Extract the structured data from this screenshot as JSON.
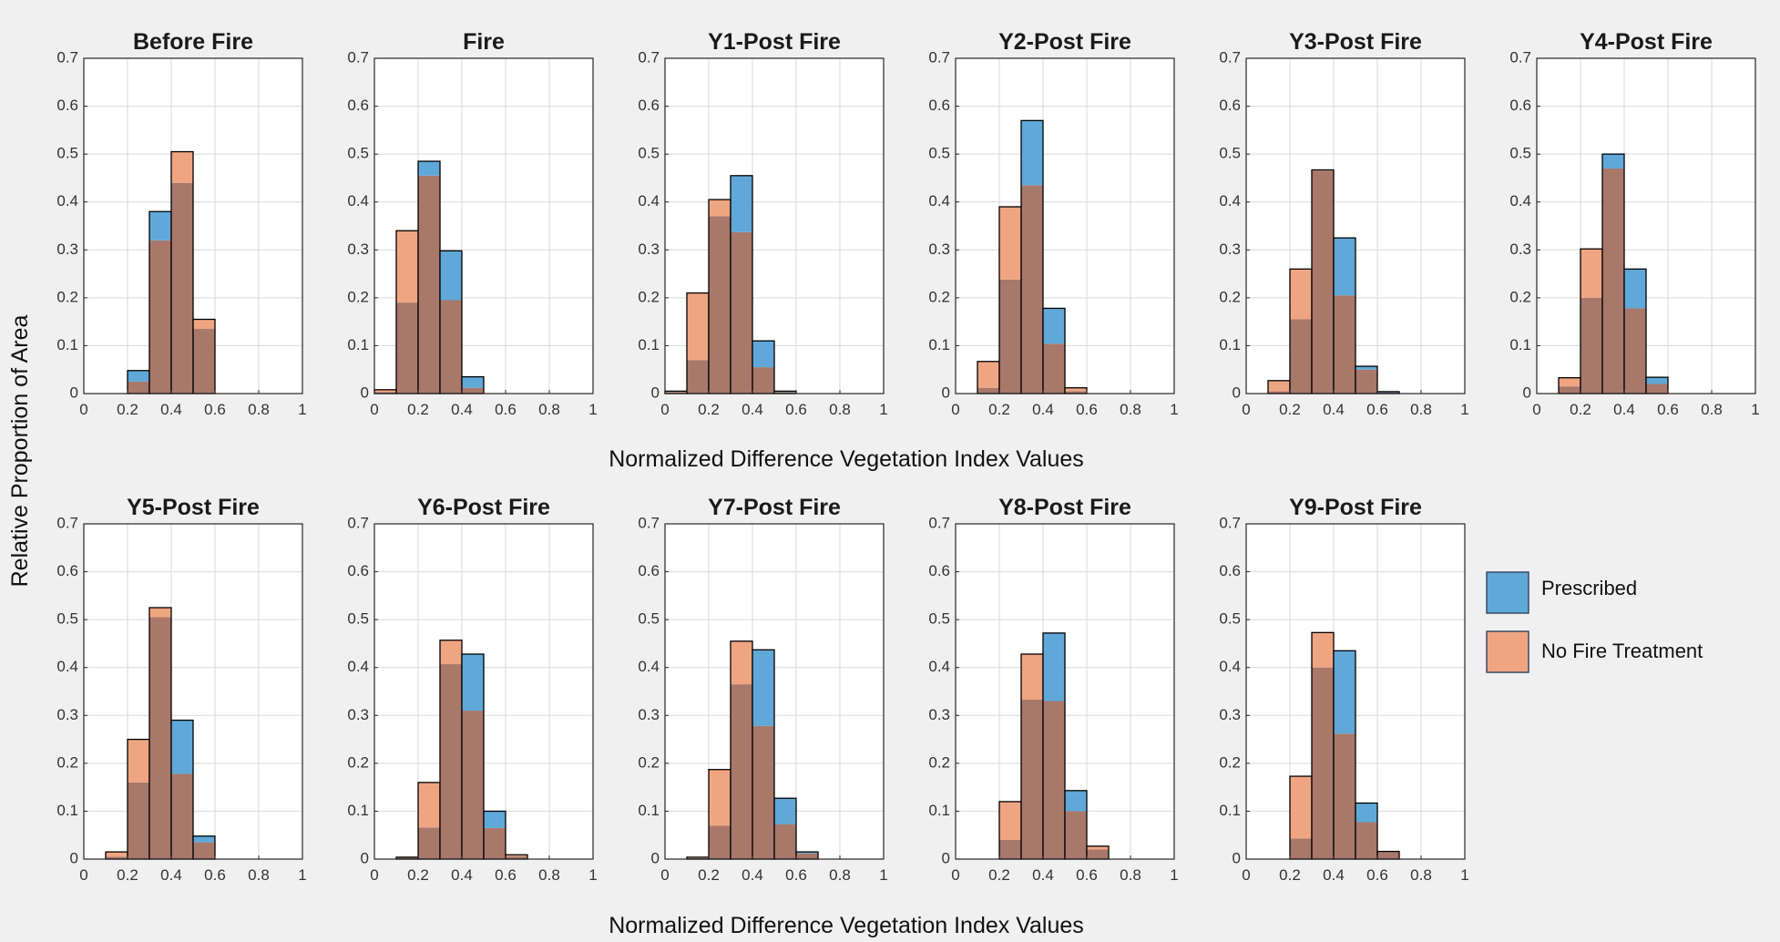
{
  "figure": {
    "xlabel_top": "Normalized Difference Vegetation Index Values",
    "xlabel_bottom": "Normalized Difference Vegetation Index Values",
    "ylabel": "Relative Proportion of Area"
  },
  "legend": {
    "entries": [
      {
        "label": "Prescribed",
        "color": "#5fa8d8"
      },
      {
        "label": "No Fire Treatment",
        "color": "#f0a582"
      }
    ]
  },
  "colors": {
    "prescribed": "#5fa8d8",
    "no_fire": "#f0a582",
    "overlap": "#a8786a",
    "grid": "#d9d9d9",
    "edge": "#000000"
  },
  "chart_data": [
    {
      "type": "bar",
      "title": "Before Fire",
      "xlim": [
        0,
        1
      ],
      "ylim": [
        0,
        0.7
      ],
      "xticks": [
        "0",
        "0.2",
        "0.4",
        "0.6",
        "0.8",
        "1"
      ],
      "yticks": [
        "0",
        "0.1",
        "0.2",
        "0.3",
        "0.4",
        "0.5",
        "0.6",
        "0.7"
      ],
      "bin_edges": [
        0,
        0.1,
        0.2,
        0.3,
        0.4,
        0.5,
        0.6,
        0.7,
        0.8,
        0.9,
        1
      ],
      "series": [
        {
          "name": "Prescribed",
          "values": [
            0,
            0,
            0.048,
            0.38,
            0.44,
            0.135,
            0,
            0,
            0,
            0
          ]
        },
        {
          "name": "No Fire Treatment",
          "values": [
            0,
            0,
            0.025,
            0.32,
            0.505,
            0.155,
            0,
            0,
            0,
            0
          ]
        }
      ]
    },
    {
      "type": "bar",
      "title": "Fire",
      "xlim": [
        0,
        1
      ],
      "ylim": [
        0,
        0.7
      ],
      "xticks": [
        "0",
        "0.2",
        "0.4",
        "0.6",
        "0.8",
        "1"
      ],
      "yticks": [
        "0",
        "0.1",
        "0.2",
        "0.3",
        "0.4",
        "0.5",
        "0.6",
        "0.7"
      ],
      "bin_edges": [
        0,
        0.1,
        0.2,
        0.3,
        0.4,
        0.5,
        0.6,
        0.7,
        0.8,
        0.9,
        1
      ],
      "series": [
        {
          "name": "Prescribed",
          "values": [
            0.003,
            0.19,
            0.485,
            0.298,
            0.035,
            0,
            0,
            0,
            0,
            0
          ]
        },
        {
          "name": "No Fire Treatment",
          "values": [
            0.008,
            0.34,
            0.455,
            0.195,
            0.012,
            0,
            0,
            0,
            0,
            0
          ]
        }
      ]
    },
    {
      "type": "bar",
      "title": "Y1-Post Fire",
      "xlim": [
        0,
        1
      ],
      "ylim": [
        0,
        0.7
      ],
      "xticks": [
        "0",
        "0.2",
        "0.4",
        "0.6",
        "0.8",
        "1"
      ],
      "yticks": [
        "0",
        "0.1",
        "0.2",
        "0.3",
        "0.4",
        "0.5",
        "0.6",
        "0.7"
      ],
      "bin_edges": [
        0,
        0.1,
        0.2,
        0.3,
        0.4,
        0.5,
        0.6,
        0.7,
        0.8,
        0.9,
        1
      ],
      "series": [
        {
          "name": "Prescribed",
          "values": [
            0.003,
            0.07,
            0.37,
            0.455,
            0.11,
            0.005,
            0,
            0,
            0,
            0
          ]
        },
        {
          "name": "No Fire Treatment",
          "values": [
            0.005,
            0.21,
            0.405,
            0.337,
            0.055,
            0.003,
            0,
            0,
            0,
            0
          ]
        }
      ]
    },
    {
      "type": "bar",
      "title": "Y2-Post Fire",
      "xlim": [
        0,
        1
      ],
      "ylim": [
        0,
        0.7
      ],
      "xticks": [
        "0",
        "0.2",
        "0.4",
        "0.6",
        "0.8",
        "1"
      ],
      "yticks": [
        "0",
        "0.1",
        "0.2",
        "0.3",
        "0.4",
        "0.5",
        "0.6",
        "0.7"
      ],
      "bin_edges": [
        0,
        0.1,
        0.2,
        0.3,
        0.4,
        0.5,
        0.6,
        0.7,
        0.8,
        0.9,
        1
      ],
      "series": [
        {
          "name": "Prescribed",
          "values": [
            0,
            0.012,
            0.238,
            0.57,
            0.178,
            0.005,
            0,
            0,
            0,
            0
          ]
        },
        {
          "name": "No Fire Treatment",
          "values": [
            0,
            0.067,
            0.39,
            0.435,
            0.104,
            0.012,
            0,
            0,
            0,
            0
          ]
        }
      ]
    },
    {
      "type": "bar",
      "title": "Y3-Post Fire",
      "xlim": [
        0,
        1
      ],
      "ylim": [
        0,
        0.7
      ],
      "xticks": [
        "0",
        "0.2",
        "0.4",
        "0.6",
        "0.8",
        "1"
      ],
      "yticks": [
        "0",
        "0.1",
        "0.2",
        "0.3",
        "0.4",
        "0.5",
        "0.6",
        "0.7"
      ],
      "bin_edges": [
        0,
        0.1,
        0.2,
        0.3,
        0.4,
        0.5,
        0.6,
        0.7,
        0.8,
        0.9,
        1
      ],
      "series": [
        {
          "name": "Prescribed",
          "values": [
            0,
            0.005,
            0.155,
            0.465,
            0.325,
            0.057,
            0.004,
            0,
            0,
            0
          ]
        },
        {
          "name": "No Fire Treatment",
          "values": [
            0,
            0.027,
            0.26,
            0.467,
            0.205,
            0.05,
            0.002,
            0,
            0,
            0
          ]
        }
      ]
    },
    {
      "type": "bar",
      "title": "Y4-Post Fire",
      "xlim": [
        0,
        1
      ],
      "ylim": [
        0,
        0.7
      ],
      "xticks": [
        "0",
        "0.2",
        "0.4",
        "0.6",
        "0.8",
        "1"
      ],
      "yticks": [
        "0",
        "0.1",
        "0.2",
        "0.3",
        "0.4",
        "0.5",
        "0.6",
        "0.7"
      ],
      "bin_edges": [
        0,
        0.1,
        0.2,
        0.3,
        0.4,
        0.5,
        0.6,
        0.7,
        0.8,
        0.9,
        1
      ],
      "series": [
        {
          "name": "Prescribed",
          "values": [
            0,
            0.015,
            0.2,
            0.5,
            0.26,
            0.034,
            0,
            0,
            0,
            0
          ]
        },
        {
          "name": "No Fire Treatment",
          "values": [
            0,
            0.033,
            0.302,
            0.47,
            0.178,
            0.02,
            0,
            0,
            0,
            0
          ]
        }
      ]
    },
    {
      "type": "bar",
      "title": "Y5-Post Fire",
      "xlim": [
        0,
        1
      ],
      "ylim": [
        0,
        0.7
      ],
      "xticks": [
        "0",
        "0.2",
        "0.4",
        "0.6",
        "0.8",
        "1"
      ],
      "yticks": [
        "0",
        "0.1",
        "0.2",
        "0.3",
        "0.4",
        "0.5",
        "0.6",
        "0.7"
      ],
      "bin_edges": [
        0,
        0.1,
        0.2,
        0.3,
        0.4,
        0.5,
        0.6,
        0.7,
        0.8,
        0.9,
        1
      ],
      "series": [
        {
          "name": "Prescribed",
          "values": [
            0,
            0.005,
            0.16,
            0.505,
            0.29,
            0.048,
            0,
            0,
            0,
            0
          ]
        },
        {
          "name": "No Fire Treatment",
          "values": [
            0,
            0.015,
            0.25,
            0.525,
            0.178,
            0.035,
            0,
            0,
            0,
            0
          ]
        }
      ]
    },
    {
      "type": "bar",
      "title": "Y6-Post Fire",
      "xlim": [
        0,
        1
      ],
      "ylim": [
        0,
        0.7
      ],
      "xticks": [
        "0",
        "0.2",
        "0.4",
        "0.6",
        "0.8",
        "1"
      ],
      "yticks": [
        "0",
        "0.1",
        "0.2",
        "0.3",
        "0.4",
        "0.5",
        "0.6",
        "0.7"
      ],
      "bin_edges": [
        0,
        0.1,
        0.2,
        0.3,
        0.4,
        0.5,
        0.6,
        0.7,
        0.8,
        0.9,
        1
      ],
      "series": [
        {
          "name": "Prescribed",
          "values": [
            0,
            0.003,
            0.066,
            0.407,
            0.428,
            0.1,
            0.006,
            0,
            0,
            0
          ]
        },
        {
          "name": "No Fire Treatment",
          "values": [
            0,
            0.004,
            0.16,
            0.457,
            0.31,
            0.065,
            0.009,
            0,
            0,
            0
          ]
        }
      ]
    },
    {
      "type": "bar",
      "title": "Y7-Post Fire",
      "xlim": [
        0,
        1
      ],
      "ylim": [
        0,
        0.7
      ],
      "xticks": [
        "0",
        "0.2",
        "0.4",
        "0.6",
        "0.8",
        "1"
      ],
      "yticks": [
        "0",
        "0.1",
        "0.2",
        "0.3",
        "0.4",
        "0.5",
        "0.6",
        "0.7"
      ],
      "bin_edges": [
        0,
        0.1,
        0.2,
        0.3,
        0.4,
        0.5,
        0.6,
        0.7,
        0.8,
        0.9,
        1
      ],
      "series": [
        {
          "name": "Prescribed",
          "values": [
            0,
            0.002,
            0.07,
            0.365,
            0.437,
            0.127,
            0.015,
            0,
            0,
            0
          ]
        },
        {
          "name": "No Fire Treatment",
          "values": [
            0,
            0.004,
            0.187,
            0.455,
            0.278,
            0.073,
            0.012,
            0,
            0,
            0
          ]
        }
      ]
    },
    {
      "type": "bar",
      "title": "Y8-Post Fire",
      "xlim": [
        0,
        1
      ],
      "ylim": [
        0,
        0.7
      ],
      "xticks": [
        "0",
        "0.2",
        "0.4",
        "0.6",
        "0.8",
        "1"
      ],
      "yticks": [
        "0",
        "0.1",
        "0.2",
        "0.3",
        "0.4",
        "0.5",
        "0.6",
        "0.7"
      ],
      "bin_edges": [
        0,
        0.1,
        0.2,
        0.3,
        0.4,
        0.5,
        0.6,
        0.7,
        0.8,
        0.9,
        1
      ],
      "series": [
        {
          "name": "Prescribed",
          "values": [
            0,
            0,
            0.04,
            0.333,
            0.472,
            0.143,
            0.02,
            0,
            0,
            0
          ]
        },
        {
          "name": "No Fire Treatment",
          "values": [
            0,
            0,
            0.12,
            0.428,
            0.33,
            0.1,
            0.027,
            0,
            0,
            0
          ]
        }
      ]
    },
    {
      "type": "bar",
      "title": "Y9-Post Fire",
      "xlim": [
        0,
        1
      ],
      "ylim": [
        0,
        0.7
      ],
      "xticks": [
        "0",
        "0.2",
        "0.4",
        "0.6",
        "0.8",
        "1"
      ],
      "yticks": [
        "0",
        "0.1",
        "0.2",
        "0.3",
        "0.4",
        "0.5",
        "0.6",
        "0.7"
      ],
      "bin_edges": [
        0,
        0.1,
        0.2,
        0.3,
        0.4,
        0.5,
        0.6,
        0.7,
        0.8,
        0.9,
        1
      ],
      "series": [
        {
          "name": "Prescribed",
          "values": [
            0,
            0,
            0.043,
            0.4,
            0.435,
            0.117,
            0.016,
            0,
            0,
            0
          ]
        },
        {
          "name": "No Fire Treatment",
          "values": [
            0,
            0,
            0.173,
            0.473,
            0.262,
            0.077,
            0.015,
            0,
            0,
            0
          ]
        }
      ]
    }
  ]
}
